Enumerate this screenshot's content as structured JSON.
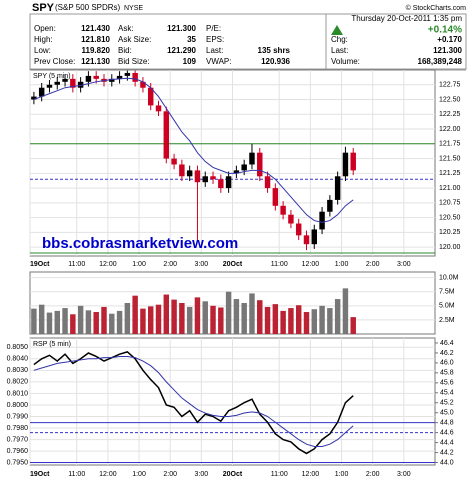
{
  "header": {
    "symbol": "SPY",
    "name": "(S&P 500 SPDRs)",
    "exchange": "NYSE",
    "copyright": "© StockCharts.com",
    "date": "Thursday 20-Oct-2011 1:35 pm",
    "quote_rows": [
      [
        "Open:",
        "121.430",
        "Ask:",
        "121.300",
        "P/E:"
      ],
      [
        "High:",
        "121.810",
        "Ask Size:",
        "35",
        "EPS:"
      ],
      [
        "Low:",
        "119.820",
        "Bid:",
        "121.290",
        "Last:",
        "135 shrs"
      ],
      [
        "Prev Close:",
        "121.130",
        "Bid Size:",
        "109",
        "VWAP:",
        "120.936"
      ]
    ],
    "change_pct": "+0.14%",
    "summary_rows": [
      [
        "Chg:",
        "+0.170"
      ],
      [
        "Last:",
        "121.300"
      ],
      [
        "Volume:",
        "168,389,248"
      ]
    ]
  },
  "watermark": "bbs.cobrasmarketview.com",
  "chart_data": [
    {
      "type": "candlestick",
      "label": "SPY (5 min)",
      "up_color": "#000000",
      "down_color": "#cc0022",
      "x": [
        0.125,
        0.375,
        0.625,
        0.875,
        1.125,
        1.375,
        1.625,
        1.875,
        2.125,
        2.375,
        2.625,
        2.875,
        3.125,
        3.375,
        3.625,
        3.875,
        4.125,
        4.375,
        4.625,
        4.875,
        5.125,
        5.375,
        5.625,
        5.875,
        6.125,
        6.375,
        6.625,
        6.875,
        7.125,
        7.375,
        7.625,
        7.875,
        8.125,
        8.375,
        8.625,
        8.875,
        9.125,
        9.375,
        9.625,
        9.875,
        10.125,
        10.375
      ],
      "open": [
        122.5,
        122.55,
        122.7,
        122.75,
        122.8,
        122.85,
        122.7,
        122.8,
        122.9,
        122.85,
        122.8,
        122.85,
        122.9,
        122.95,
        122.8,
        122.7,
        122.4,
        122.3,
        121.5,
        121.4,
        121.2,
        121.3,
        121.1,
        121.2,
        121.15,
        121.0,
        121.25,
        121.3,
        121.4,
        121.6,
        121.2,
        121.0,
        120.7,
        120.55,
        120.4,
        120.2,
        120.05,
        120.3,
        120.6,
        120.8,
        121.2,
        121.6
      ],
      "high": [
        122.63,
        122.78,
        122.83,
        122.88,
        122.93,
        122.93,
        122.88,
        122.98,
        122.98,
        122.93,
        122.93,
        122.98,
        122.99,
        122.99,
        122.88,
        122.78,
        122.48,
        122.38,
        121.58,
        121.48,
        121.38,
        121.38,
        121.28,
        121.28,
        121.23,
        121.28,
        121.38,
        121.48,
        121.75,
        121.68,
        121.28,
        121.08,
        120.78,
        120.63,
        120.48,
        120.28,
        120.38,
        120.68,
        120.88,
        121.28,
        121.7,
        121.68
      ],
      "low": [
        122.42,
        122.47,
        122.62,
        122.67,
        122.72,
        122.62,
        122.62,
        122.72,
        122.77,
        122.72,
        122.72,
        122.77,
        122.82,
        122.72,
        122.62,
        122.32,
        122.22,
        121.42,
        121.32,
        121.12,
        121.12,
        120.1,
        121.02,
        121.07,
        120.92,
        120.92,
        121.17,
        121.22,
        121.32,
        121.12,
        120.92,
        120.62,
        120.47,
        120.32,
        120.12,
        119.95,
        119.97,
        120.22,
        120.52,
        120.72,
        121.12,
        121.22
      ],
      "close": [
        122.55,
        122.7,
        122.75,
        122.8,
        122.85,
        122.7,
        122.8,
        122.9,
        122.85,
        122.8,
        122.85,
        122.9,
        122.95,
        122.8,
        122.7,
        122.4,
        122.3,
        121.5,
        121.4,
        121.2,
        121.3,
        121.1,
        121.2,
        121.15,
        121.0,
        121.2,
        121.3,
        121.4,
        121.6,
        121.2,
        121.0,
        120.7,
        120.55,
        120.4,
        120.2,
        120.05,
        120.3,
        120.6,
        120.8,
        121.2,
        121.6,
        121.3
      ],
      "lines": [
        {
          "color": "#3333aa",
          "values": [
            122.5,
            122.55,
            122.6,
            122.65,
            122.7,
            122.72,
            122.74,
            122.77,
            122.8,
            122.82,
            122.84,
            122.85,
            122.86,
            122.85,
            122.8,
            122.7,
            122.55,
            122.35,
            122.15,
            121.95,
            121.8,
            121.6,
            121.45,
            121.35,
            121.3,
            121.25,
            121.25,
            121.28,
            121.3,
            121.3,
            121.25,
            121.15,
            121.0,
            120.85,
            120.7,
            120.55,
            120.45,
            120.42,
            120.45,
            120.55,
            120.7,
            120.8
          ]
        }
      ],
      "hlines": [
        {
          "value": 121.75,
          "color": "#2a8a2a"
        },
        {
          "value": 121.15,
          "color": "#3333cc",
          "dashed": true
        },
        {
          "value": 119.9,
          "color": "#2a8a2a"
        }
      ],
      "xlim": [
        0,
        13
      ],
      "ylim": [
        119.85,
        123.0
      ],
      "xticks": [
        {
          "value": 0,
          "label": "19Oct"
        },
        {
          "value": 1.5,
          "label": "11:00"
        },
        {
          "value": 2.5,
          "label": "12:00"
        },
        {
          "value": 3.5,
          "label": "1:00"
        },
        {
          "value": 4.5,
          "label": "2:00"
        },
        {
          "value": 5.5,
          "label": "3:00"
        },
        {
          "value": 6.5,
          "label": "20Oct"
        },
        {
          "value": 8,
          "label": "11:00"
        },
        {
          "value": 9,
          "label": "12:00"
        },
        {
          "value": 10,
          "label": "1:00"
        },
        {
          "value": 11,
          "label": "2:00"
        },
        {
          "value": 12,
          "label": "3:00"
        }
      ],
      "yticks": [
        {
          "value": 120,
          "label": "120.00"
        },
        {
          "value": 120.25,
          "label": "120.25"
        },
        {
          "value": 120.5,
          "label": "120.50"
        },
        {
          "value": 120.75,
          "label": "120.75"
        },
        {
          "value": 121,
          "label": "121.00"
        },
        {
          "value": 121.25,
          "label": "121.25"
        },
        {
          "value": 121.5,
          "label": "121.50"
        },
        {
          "value": 121.75,
          "label": "121.75"
        },
        {
          "value": 122,
          "label": "122.00"
        },
        {
          "value": 122.25,
          "label": "122.25"
        },
        {
          "value": 122.5,
          "label": "122.50"
        },
        {
          "value": 122.75,
          "label": "122.75"
        }
      ],
      "grid": true
    },
    {
      "type": "bar",
      "up_color": "#777777",
      "down_color": "#bb2233",
      "x": [
        0.125,
        0.375,
        0.625,
        0.875,
        1.125,
        1.375,
        1.625,
        1.875,
        2.125,
        2.375,
        2.625,
        2.875,
        3.125,
        3.375,
        3.625,
        3.875,
        4.125,
        4.375,
        4.625,
        4.875,
        5.125,
        5.375,
        5.625,
        5.875,
        6.125,
        6.375,
        6.625,
        6.875,
        7.125,
        7.375,
        7.625,
        7.875,
        8.125,
        8.375,
        8.625,
        8.875,
        9.125,
        9.375,
        9.625,
        9.875,
        10.125,
        10.375
      ],
      "values": [
        4.5,
        5.2,
        3.8,
        4.1,
        4.6,
        3.5,
        5.0,
        4.2,
        3.9,
        4.8,
        3.6,
        4.1,
        5.5,
        6.8,
        4.5,
        4.9,
        5.2,
        7.0,
        6.1,
        5.5,
        4.8,
        6.5,
        5.8,
        5.0,
        4.7,
        7.5,
        6.2,
        5.5,
        7.2,
        6.0,
        4.8,
        5.3,
        4.1,
        4.6,
        5.1,
        3.9,
        4.4,
        5.0,
        4.6,
        6.2,
        8.1,
        3.0
      ],
      "xlim": [
        0,
        13
      ],
      "ylim": [
        0,
        11
      ],
      "yticks": [
        {
          "value": 2.5,
          "label": "2.5M"
        },
        {
          "value": 5,
          "label": "5.0M"
        },
        {
          "value": 7.5,
          "label": "7.5M"
        },
        {
          "value": 10,
          "label": "10.0M"
        }
      ],
      "grid": true
    },
    {
      "type": "line",
      "label": "RSP (5 min)",
      "color": "#000000",
      "x": [
        0.125,
        0.375,
        0.625,
        0.875,
        1.125,
        1.375,
        1.625,
        1.875,
        2.125,
        2.375,
        2.625,
        2.875,
        3.125,
        3.375,
        3.625,
        3.875,
        4.125,
        4.375,
        4.625,
        4.875,
        5.125,
        5.375,
        5.625,
        5.875,
        6.125,
        6.375,
        6.625,
        6.875,
        7.125,
        7.375,
        7.625,
        7.875,
        8.125,
        8.375,
        8.625,
        8.875,
        9.125,
        9.375,
        9.625,
        9.875,
        10.125,
        10.375
      ],
      "values": [
        0.8035,
        0.804,
        0.8043,
        0.8038,
        0.8044,
        0.8036,
        0.804,
        0.8045,
        0.8042,
        0.8038,
        0.8041,
        0.8044,
        0.8046,
        0.804,
        0.803,
        0.8022,
        0.8015,
        0.8,
        0.7998,
        0.799,
        0.7995,
        0.7985,
        0.7992,
        0.799,
        0.7986,
        0.7995,
        0.7998,
        0.8002,
        0.8005,
        0.7992,
        0.7985,
        0.7975,
        0.797,
        0.7968,
        0.7962,
        0.7958,
        0.7962,
        0.797,
        0.7975,
        0.7985,
        0.8002,
        0.8008
      ],
      "lines": [
        {
          "color": "#3333aa",
          "values": [
            0.803,
            0.8032,
            0.8034,
            0.8036,
            0.8037,
            0.8038,
            0.8039,
            0.804,
            0.804,
            0.8041,
            0.8041,
            0.8042,
            0.8042,
            0.8041,
            0.8038,
            0.8034,
            0.8028,
            0.802,
            0.8013,
            0.8006,
            0.8001,
            0.7996,
            0.7993,
            0.7991,
            0.799,
            0.799,
            0.7991,
            0.7993,
            0.7994,
            0.7993,
            0.799,
            0.7985,
            0.798,
            0.7975,
            0.797,
            0.7966,
            0.7964,
            0.7964,
            0.7966,
            0.797,
            0.7976,
            0.7982
          ]
        }
      ],
      "hlines": [
        {
          "value": 44.8,
          "color": "#3333cc",
          "axis": "y2"
        },
        {
          "value": 44.6,
          "color": "#3333cc",
          "dashed": true,
          "axis": "y2"
        },
        {
          "value": 44.0,
          "color": "#3333cc",
          "axis": "y2"
        }
      ],
      "xlim": [
        0,
        13
      ],
      "ylim": [
        0.7948,
        0.8058
      ],
      "y2lim": [
        43.95,
        46.5
      ],
      "xticks": [
        {
          "value": 0,
          "label": "19Oct"
        },
        {
          "value": 1.5,
          "label": "11:00"
        },
        {
          "value": 2.5,
          "label": "12:00"
        },
        {
          "value": 3.5,
          "label": "1:00"
        },
        {
          "value": 4.5,
          "label": "2:00"
        },
        {
          "value": 5.5,
          "label": "3:00"
        },
        {
          "value": 6.5,
          "label": "20Oct"
        },
        {
          "value": 8,
          "label": "11:00"
        },
        {
          "value": 9,
          "label": "12:00"
        },
        {
          "value": 10,
          "label": "1:00"
        },
        {
          "value": 11,
          "label": "2:00"
        },
        {
          "value": 12,
          "label": "3:00"
        }
      ],
      "yticks": [
        {
          "value": 0.795,
          "label": "0.7950"
        },
        {
          "value": 0.796,
          "label": "0.7960"
        },
        {
          "value": 0.797,
          "label": "0.7970"
        },
        {
          "value": 0.798,
          "label": "0.7980"
        },
        {
          "value": 0.799,
          "label": "0.7990"
        },
        {
          "value": 0.8,
          "label": "0.8000"
        },
        {
          "value": 0.801,
          "label": "0.8010"
        },
        {
          "value": 0.802,
          "label": "0.8020"
        },
        {
          "value": 0.803,
          "label": "0.8030"
        },
        {
          "value": 0.804,
          "label": "0.8040"
        },
        {
          "value": 0.805,
          "label": "0.8050"
        }
      ],
      "y2ticks": [
        {
          "value": 44,
          "label": "44.0"
        },
        44.2,
        44.4,
        44.6,
        44.8,
        {
          "value": 45,
          "label": "45.0"
        },
        45.2,
        45.4,
        45.6,
        45.8,
        {
          "value": 46,
          "label": "46.0"
        },
        46.2,
        46.4
      ],
      "grid": true
    }
  ]
}
